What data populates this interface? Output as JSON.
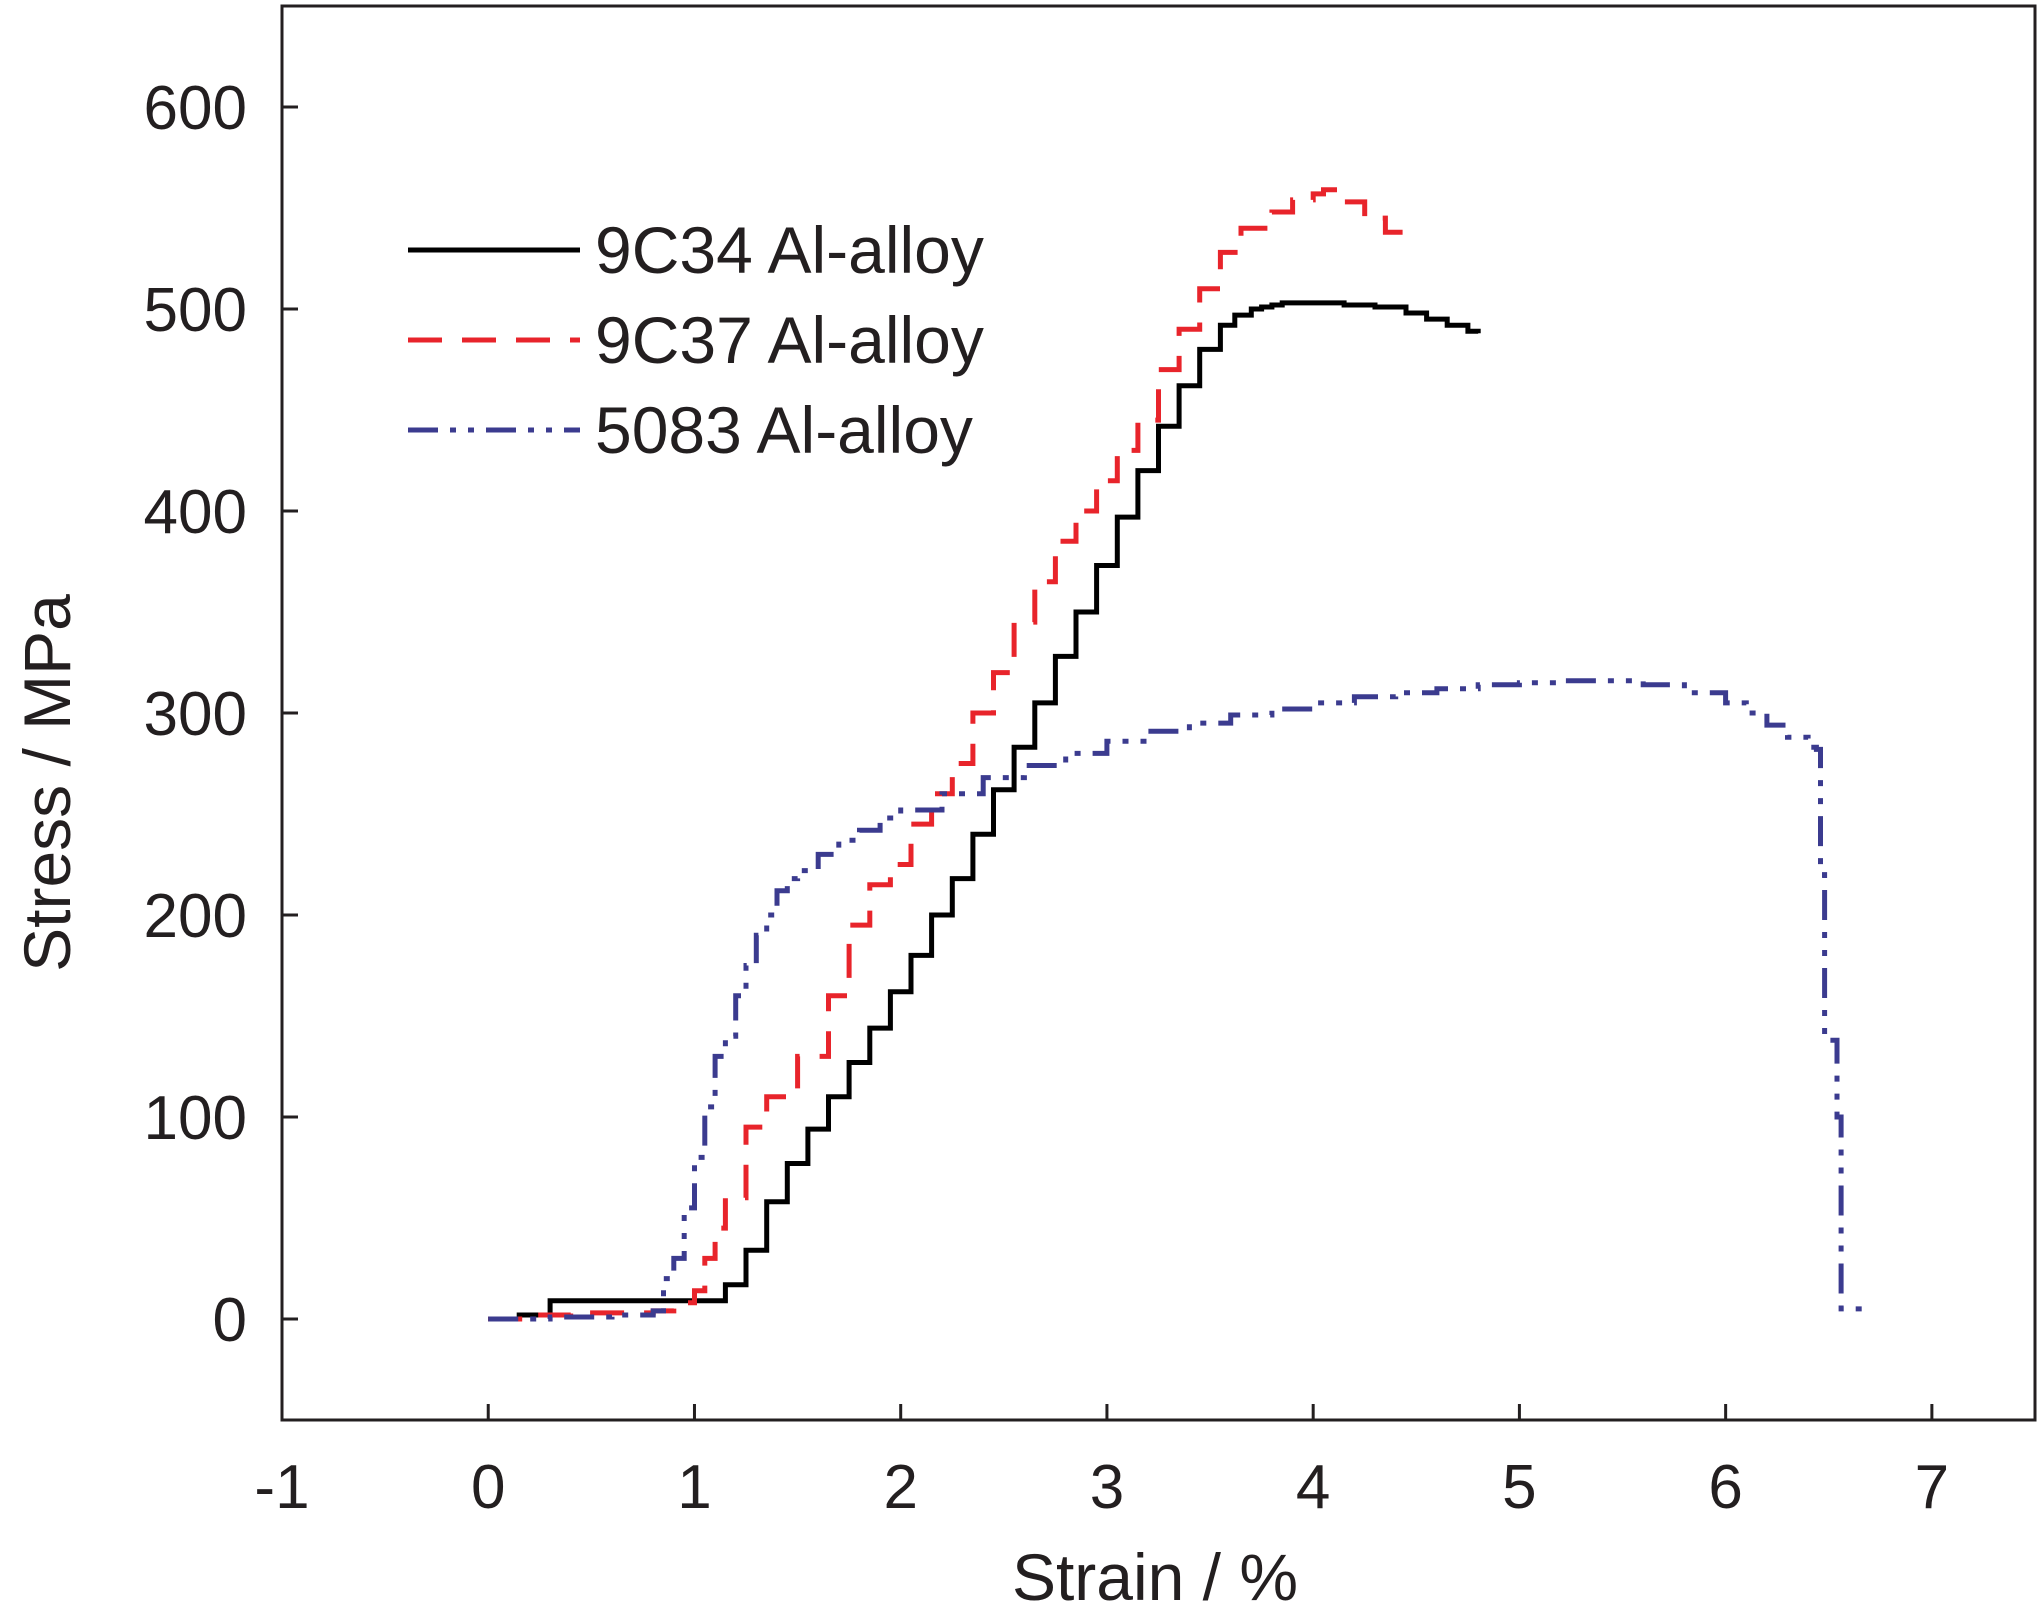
{
  "chart_data": {
    "type": "line",
    "title": "",
    "xlabel": "Strain / %",
    "ylabel": "Stress / MPa",
    "xlim": [
      -1,
      7.5
    ],
    "ylim": [
      -50,
      650
    ],
    "xticks": [
      -1,
      0,
      1,
      2,
      3,
      4,
      5,
      6,
      7
    ],
    "yticks": [
      0,
      100,
      200,
      300,
      400,
      500,
      600
    ],
    "grid": false,
    "legend_position": "top-left",
    "series": [
      {
        "name": "9C34 Al-alloy",
        "color": "#000000",
        "dash": "solid",
        "x": [
          0,
          0.15,
          0.3,
          0.3,
          1.1,
          1.15,
          1.2,
          1.25,
          1.35,
          1.45,
          1.55,
          1.65,
          1.75,
          1.85,
          1.95,
          2.05,
          2.15,
          2.25,
          2.35,
          2.45,
          2.55,
          2.65,
          2.75,
          2.85,
          2.95,
          3.05,
          3.15,
          3.25,
          3.35,
          3.45,
          3.55,
          3.62,
          3.7,
          3.75,
          3.8,
          3.85,
          3.9,
          4.0,
          4.15,
          4.3,
          4.45,
          4.55,
          4.65,
          4.75,
          4.8
        ],
        "y": [
          0,
          2,
          5,
          9,
          9,
          17,
          17,
          34,
          58,
          77,
          94,
          110,
          127,
          144,
          162,
          180,
          200,
          218,
          240,
          262,
          283,
          305,
          328,
          350,
          373,
          397,
          420,
          442,
          462,
          480,
          492,
          497,
          500,
          501,
          502,
          503,
          503,
          503,
          502,
          501,
          498,
          495,
          492,
          489,
          488
        ]
      },
      {
        "name": "9C37 Al-alloy",
        "color": "#e8242b",
        "dash": "dashed",
        "x": [
          0,
          0.2,
          0.4,
          0.6,
          0.8,
          0.9,
          1.0,
          1.05,
          1.1,
          1.15,
          1.25,
          1.35,
          1.5,
          1.65,
          1.75,
          1.85,
          1.95,
          2.05,
          2.15,
          2.25,
          2.35,
          2.45,
          2.55,
          2.65,
          2.75,
          2.85,
          2.95,
          3.05,
          3.15,
          3.25,
          3.35,
          3.45,
          3.55,
          3.65,
          3.8,
          3.9,
          4.0,
          4.05,
          4.1,
          4.15,
          4.25,
          4.35,
          4.45
        ],
        "y": [
          0,
          2,
          3,
          3,
          4,
          8,
          14,
          30,
          45,
          60,
          95,
          110,
          130,
          160,
          195,
          215,
          225,
          245,
          260,
          275,
          300,
          320,
          345,
          365,
          385,
          400,
          415,
          430,
          445,
          470,
          490,
          510,
          528,
          540,
          548,
          554,
          557,
          559,
          559,
          553,
          545,
          538,
          535
        ]
      },
      {
        "name": "5083 Al-alloy",
        "color": "#3b3b8f",
        "dash": "dash-dot-dot",
        "x": [
          0,
          0.3,
          0.6,
          0.8,
          0.85,
          0.9,
          0.95,
          1.0,
          1.05,
          1.1,
          1.15,
          1.2,
          1.25,
          1.3,
          1.35,
          1.4,
          1.45,
          1.5,
          1.6,
          1.7,
          1.8,
          1.9,
          2.0,
          2.2,
          2.4,
          2.6,
          2.8,
          3.0,
          3.2,
          3.4,
          3.6,
          3.8,
          4.0,
          4.2,
          4.4,
          4.6,
          4.8,
          5.0,
          5.2,
          5.4,
          5.6,
          5.8,
          6.0,
          6.1,
          6.2,
          6.3,
          6.4,
          6.44,
          6.46,
          6.48,
          6.5,
          6.52,
          6.54,
          6.56,
          6.7
        ],
        "y": [
          0,
          1,
          2,
          4,
          20,
          30,
          55,
          80,
          105,
          130,
          140,
          160,
          175,
          190,
          200,
          212,
          218,
          222,
          230,
          237,
          242,
          248,
          252,
          260,
          268,
          274,
          280,
          286,
          291,
          295,
          299,
          302,
          305,
          308,
          310,
          312,
          314,
          315,
          316,
          316,
          314,
          310,
          305,
          300,
          294,
          288,
          283,
          282,
          220,
          140,
          138,
          138,
          100,
          5,
          5
        ]
      }
    ]
  }
}
